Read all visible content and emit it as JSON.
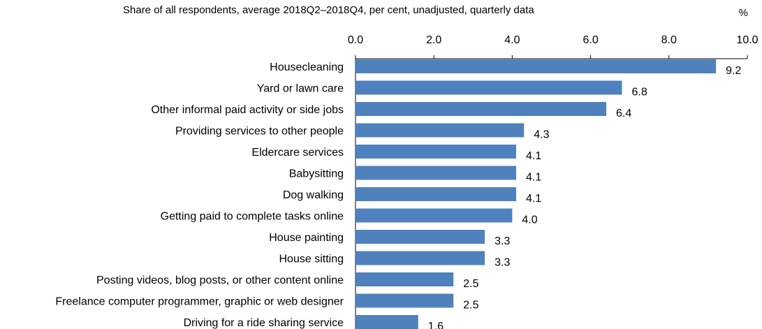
{
  "chart_data": {
    "type": "bar",
    "orientation": "horizontal",
    "title": "Share of all respondents, average 2018Q2–2018Q4, per cent, unadjusted, quarterly data",
    "unit_label": "%",
    "xlim": [
      0,
      10
    ],
    "x_ticks": [
      "0.0",
      "2.0",
      "4.0",
      "6.0",
      "8.0",
      "10.0"
    ],
    "x_axis_position": "top",
    "grid": false,
    "bar_color": "#4F81BD",
    "categories": [
      "Housecleaning",
      "Yard or lawn care",
      "Other informal paid activity or side jobs",
      "Providing services to other people",
      "Eldercare services",
      "Babysitting",
      "Dog walking",
      "Getting paid to complete tasks online",
      "House painting",
      "House sitting",
      "Posting videos, blog posts, or other content online",
      "Freelance computer programmer, graphic or web designer",
      "Driving for a ride sharing service"
    ],
    "values": [
      9.2,
      6.8,
      6.4,
      4.3,
      4.1,
      4.1,
      4.1,
      4.0,
      3.3,
      3.3,
      2.5,
      2.5,
      1.6
    ],
    "value_labels": [
      "9.2",
      "6.8",
      "6.4",
      "4.3",
      "4.1",
      "4.1",
      "4.1",
      "4.0",
      "3.3",
      "3.3",
      "2.5",
      "2.5",
      "1.6"
    ]
  }
}
